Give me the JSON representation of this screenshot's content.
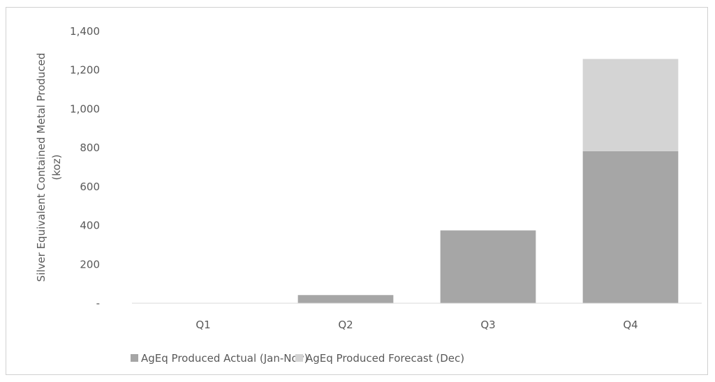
{
  "chart_data": {
    "type": "bar",
    "stacked": true,
    "categories": [
      "Q1",
      "Q2",
      "Q3",
      "Q4"
    ],
    "series": [
      {
        "name": "AgEq Produced Actual (Jan-Nov)",
        "values": [
          0,
          42,
          375,
          783
        ],
        "color": "#a6a6a6"
      },
      {
        "name": "AgEq Produced Forecast (Dec)",
        "values": [
          0,
          0,
          0,
          475
        ],
        "color": "#d4d4d4"
      }
    ],
    "ylabel_lines": [
      "Silver Equivalent Contained Metal Produced",
      "(koz)"
    ],
    "xlabel": "",
    "ylim": [
      0,
      1400
    ],
    "yticks": [
      0,
      200,
      400,
      600,
      800,
      1000,
      1200,
      1400
    ],
    "ytick_labels": [
      "-",
      "200",
      "400",
      "600",
      "800",
      "1,000",
      "1,200",
      "1,400"
    ],
    "grid": false,
    "legend_position": "bottom"
  }
}
